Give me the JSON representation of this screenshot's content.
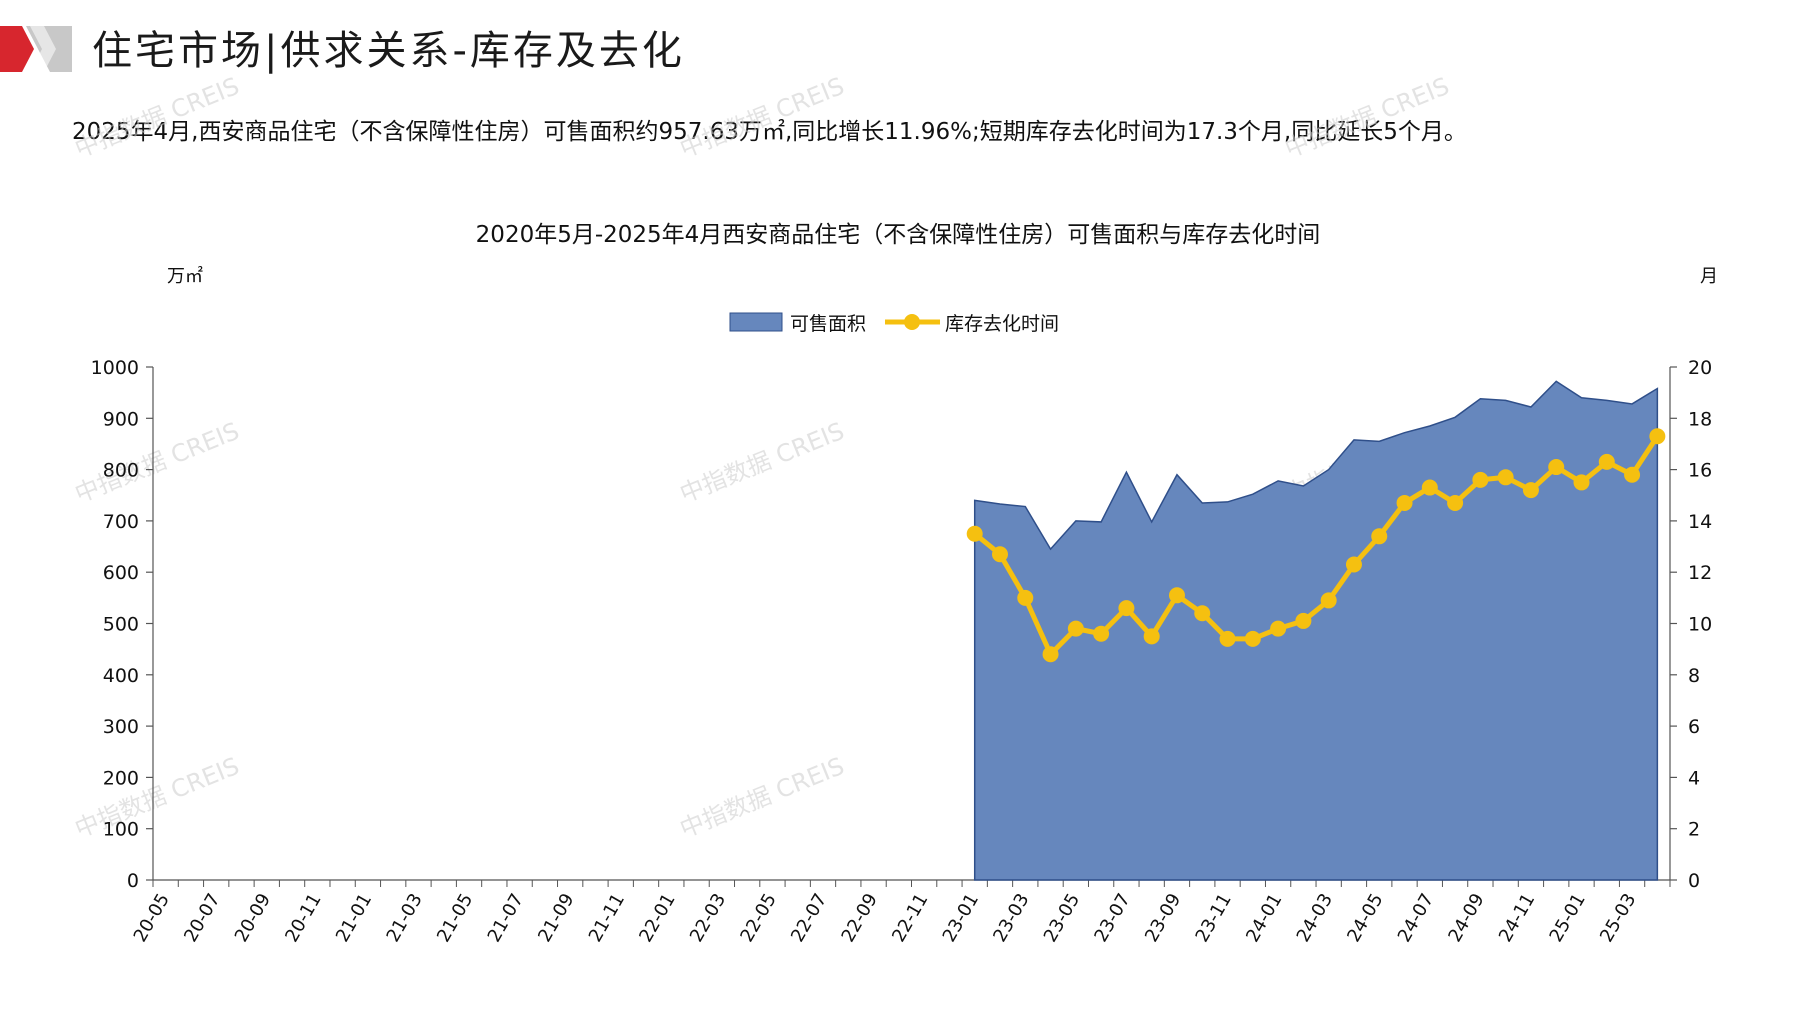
{
  "header": {
    "title": "住宅市场|供求关系-库存及去化",
    "summary": "2025年4月,西安商品住宅（不含保障性住房）可售面积约957.63万㎡,同比增长11.96%;短期库存去化时间为17.3个月,同比延长5个月。"
  },
  "watermark": "中指数据 CREIS",
  "colors": {
    "area": "#6687bd",
    "area_stroke": "#2f4f8a",
    "line": "#f5c010",
    "logo_red": "#d7262e",
    "logo_gray": "#c8c8c8"
  },
  "chart_data": {
    "type": "area+line",
    "title": "2020年5月-2025年4月西安商品住宅（不含保障性住房）可售面积与库存去化时间",
    "ylabel_left": "万㎡",
    "ylabel_right": "月",
    "ylim_left": [
      0,
      1000
    ],
    "ylim_right": [
      0,
      20
    ],
    "yticks_left": [
      0,
      100,
      200,
      300,
      400,
      500,
      600,
      700,
      800,
      900,
      1000
    ],
    "yticks_right": [
      0,
      2,
      4,
      6,
      8,
      10,
      12,
      14,
      16,
      18,
      20
    ],
    "legend_position": "top-center",
    "legend": [
      "可售面积",
      "库存去化时间"
    ],
    "x_tick_labels": [
      "20-05",
      "20-07",
      "20-09",
      "20-11",
      "21-01",
      "21-03",
      "21-05",
      "21-07",
      "21-09",
      "21-11",
      "22-01",
      "22-03",
      "22-05",
      "22-07",
      "22-09",
      "22-11",
      "23-01",
      "23-03",
      "23-05",
      "23-07",
      "23-09",
      "23-11",
      "24-01",
      "24-03",
      "24-05",
      "24-07",
      "24-09",
      "24-11",
      "25-01",
      "25-03"
    ],
    "months": [
      "20-05",
      "20-06",
      "20-07",
      "20-08",
      "20-09",
      "20-10",
      "20-11",
      "20-12",
      "21-01",
      "21-02",
      "21-03",
      "21-04",
      "21-05",
      "21-06",
      "21-07",
      "21-08",
      "21-09",
      "21-10",
      "21-11",
      "21-12",
      "22-01",
      "22-02",
      "22-03",
      "22-04",
      "22-05",
      "22-06",
      "22-07",
      "22-08",
      "22-09",
      "22-10",
      "22-11",
      "22-12",
      "23-01",
      "23-02",
      "23-03",
      "23-04",
      "23-05",
      "23-06",
      "23-07",
      "23-08",
      "23-09",
      "23-10",
      "23-11",
      "23-12",
      "24-01",
      "24-02",
      "24-03",
      "24-04",
      "24-05",
      "24-06",
      "24-07",
      "24-08",
      "24-09",
      "24-10",
      "24-11",
      "24-12",
      "25-01",
      "25-02",
      "25-03",
      "25-04"
    ],
    "series": [
      {
        "name": "可售面积",
        "type": "area",
        "axis": "left",
        "values": [
          null,
          null,
          null,
          null,
          null,
          null,
          null,
          null,
          null,
          null,
          null,
          null,
          null,
          null,
          null,
          null,
          null,
          null,
          null,
          null,
          null,
          null,
          null,
          null,
          null,
          null,
          null,
          null,
          null,
          null,
          null,
          null,
          740,
          733,
          728,
          645,
          700,
          698,
          795,
          698,
          790,
          735,
          737,
          752,
          778,
          768,
          800,
          858,
          855,
          872,
          885,
          902,
          938,
          935,
          922,
          972,
          940,
          935,
          928,
          958
        ]
      },
      {
        "name": "库存去化时间",
        "type": "line",
        "axis": "right",
        "values": [
          null,
          null,
          null,
          null,
          null,
          null,
          null,
          null,
          null,
          null,
          null,
          null,
          null,
          null,
          null,
          null,
          null,
          null,
          null,
          null,
          null,
          null,
          null,
          null,
          null,
          null,
          null,
          null,
          null,
          null,
          null,
          null,
          13.5,
          12.7,
          11.0,
          8.8,
          9.8,
          9.6,
          10.6,
          9.5,
          11.1,
          10.4,
          9.4,
          9.4,
          9.8,
          10.1,
          10.9,
          12.3,
          13.4,
          14.7,
          15.3,
          14.7,
          15.6,
          15.7,
          15.2,
          16.1,
          15.5,
          16.3,
          15.8,
          17.3
        ]
      }
    ]
  }
}
